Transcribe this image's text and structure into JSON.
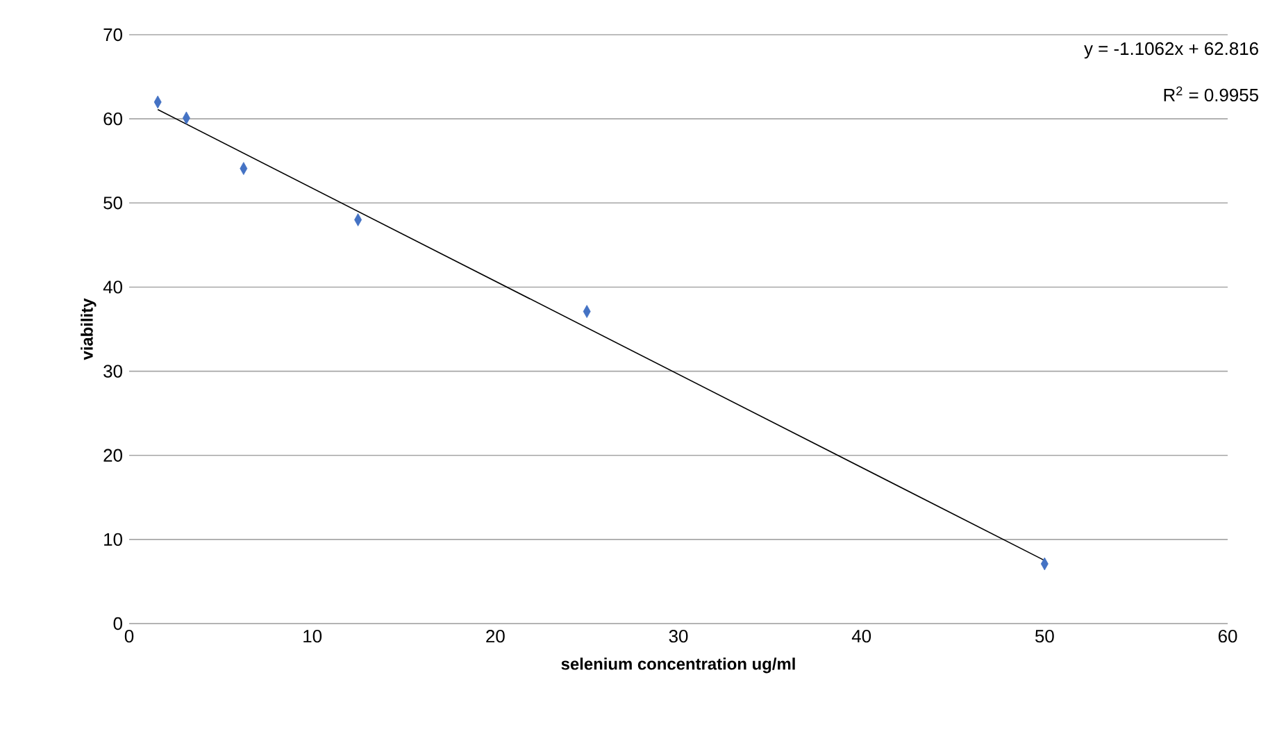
{
  "chart_data": {
    "type": "scatter",
    "xlabel": "selenium concentration ug/ml",
    "ylabel": "viability",
    "xlim": [
      0,
      60
    ],
    "xticks": [
      0,
      10,
      20,
      30,
      40,
      50,
      60
    ],
    "ylim": [
      0,
      70
    ],
    "yticks": [
      0,
      10,
      20,
      30,
      40,
      50,
      60,
      70
    ],
    "grid": "y",
    "series": [
      {
        "color": "#4472c4",
        "marker": "diamond",
        "x": [
          1.5625,
          3.125,
          6.25,
          12.5,
          25,
          50
        ],
        "values": [
          62.0,
          60.1,
          54.1,
          48.0,
          37.1,
          7.1
        ]
      },
      {
        "type": "line",
        "color": "#000000",
        "marker": "none",
        "line_style": "solid",
        "x": [
          1.5625,
          50
        ],
        "values": [
          61.1,
          7.5
        ]
      }
    ],
    "annotations": [
      "y = -1.1062x + 62.816",
      "R$^{2}$ = 0.9955"
    ]
  }
}
